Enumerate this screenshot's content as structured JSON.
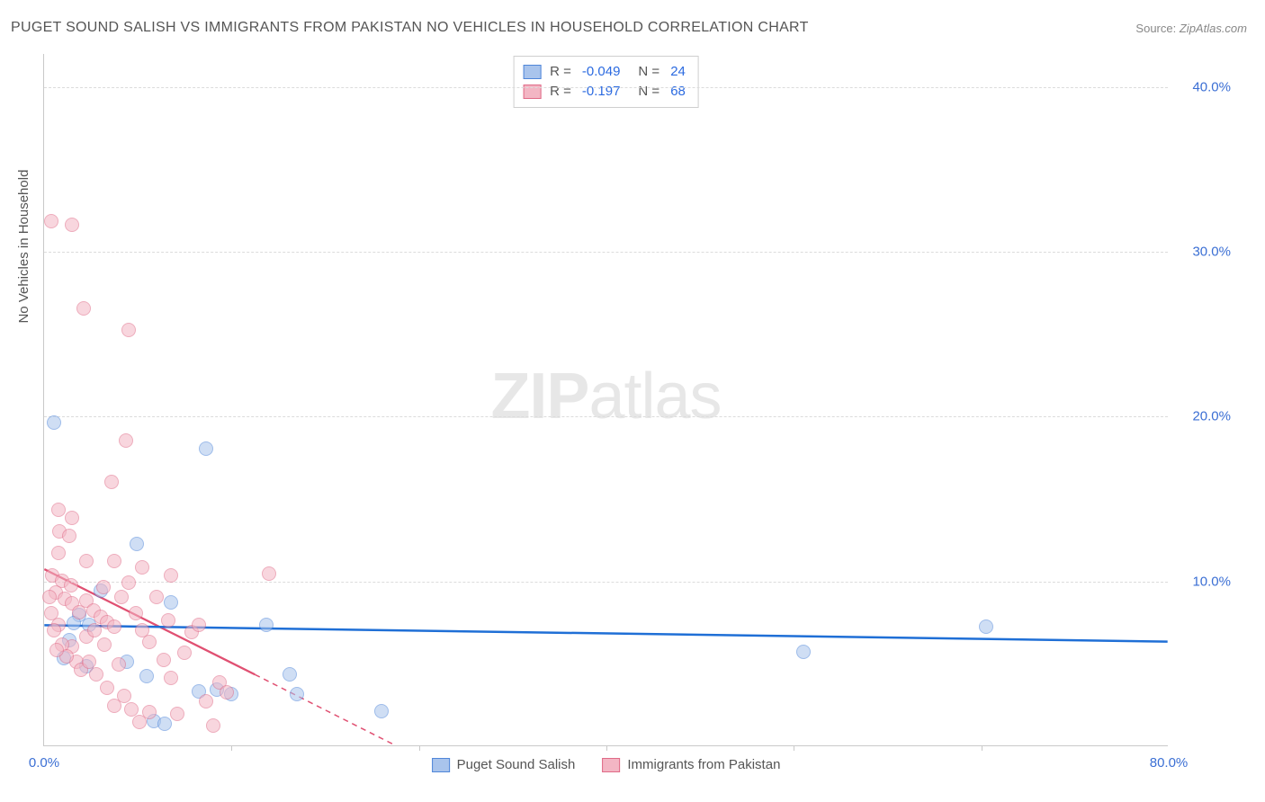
{
  "title": "PUGET SOUND SALISH VS IMMIGRANTS FROM PAKISTAN NO VEHICLES IN HOUSEHOLD CORRELATION CHART",
  "source_label": "Source:",
  "source_value": "ZipAtlas.com",
  "ylabel": "No Vehicles in Household",
  "watermark": {
    "bold": "ZIP",
    "light": "atlas"
  },
  "chart": {
    "type": "scatter",
    "xlim": [
      0,
      80
    ],
    "ylim": [
      0,
      42
    ],
    "x_ticks": [
      0,
      80
    ],
    "x_tick_labels": [
      "0.0%",
      "80.0%"
    ],
    "x_minor_ticks": [
      13.3,
      26.7,
      40,
      53.3,
      66.7
    ],
    "y_ticks": [
      10,
      20,
      30,
      40
    ],
    "y_tick_labels": [
      "10.0%",
      "20.0%",
      "30.0%",
      "40.0%"
    ],
    "grid_color": "#dcdcdc",
    "axis_color": "#c9c9c9",
    "background_color": "#ffffff",
    "marker_radius": 8,
    "marker_stroke_width": 1.2,
    "series": [
      {
        "name": "Puget Sound Salish",
        "fill": "#a9c4ec",
        "stroke": "#4f86d9",
        "opacity": 0.55,
        "R": "-0.049",
        "N": "24",
        "trend": {
          "x1": 0,
          "y1": 7.3,
          "x2": 80,
          "y2": 6.3,
          "color": "#1f6fd6",
          "width": 2.5,
          "dash": "none"
        },
        "points": [
          [
            0.7,
            19.6
          ],
          [
            11.5,
            18.0
          ],
          [
            6.6,
            12.2
          ],
          [
            2.5,
            7.9
          ],
          [
            2.1,
            7.4
          ],
          [
            3.2,
            7.3
          ],
          [
            15.8,
            7.3
          ],
          [
            1.8,
            6.4
          ],
          [
            1.4,
            5.3
          ],
          [
            5.9,
            5.1
          ],
          [
            7.3,
            4.2
          ],
          [
            11.0,
            3.3
          ],
          [
            12.3,
            3.4
          ],
          [
            13.3,
            3.1
          ],
          [
            7.8,
            1.5
          ],
          [
            8.6,
            1.3
          ],
          [
            18.0,
            3.1
          ],
          [
            17.5,
            4.3
          ],
          [
            24.0,
            2.1
          ],
          [
            54.0,
            5.7
          ],
          [
            67.0,
            7.2
          ],
          [
            9.0,
            8.7
          ],
          [
            4.0,
            9.4
          ],
          [
            3.0,
            4.8
          ]
        ]
      },
      {
        "name": "Immigrants from Pakistan",
        "fill": "#f3b6c4",
        "stroke": "#e06a87",
        "opacity": 0.55,
        "R": "-0.197",
        "N": "68",
        "trend": {
          "x1": 0,
          "y1": 10.7,
          "x2": 25,
          "y2": 0,
          "color": "#e05072",
          "width": 2.3,
          "dash": "none",
          "dash_ext": {
            "x1": 15,
            "y1": 4.3,
            "x2": 25,
            "y2": 0,
            "dash": "6,5"
          }
        },
        "points": [
          [
            0.5,
            31.8
          ],
          [
            2.0,
            31.6
          ],
          [
            2.8,
            26.5
          ],
          [
            6.0,
            25.2
          ],
          [
            5.8,
            18.5
          ],
          [
            4.8,
            16.0
          ],
          [
            1.0,
            14.3
          ],
          [
            2.0,
            13.8
          ],
          [
            1.1,
            13.0
          ],
          [
            1.8,
            12.7
          ],
          [
            1.0,
            11.7
          ],
          [
            3.0,
            11.2
          ],
          [
            5.0,
            11.2
          ],
          [
            7.0,
            10.8
          ],
          [
            9.0,
            10.3
          ],
          [
            16.0,
            10.4
          ],
          [
            0.6,
            10.3
          ],
          [
            1.3,
            10.0
          ],
          [
            0.8,
            9.3
          ],
          [
            1.5,
            8.9
          ],
          [
            2.0,
            8.6
          ],
          [
            2.5,
            8.1
          ],
          [
            3.0,
            8.8
          ],
          [
            3.5,
            8.2
          ],
          [
            4.0,
            7.8
          ],
          [
            4.5,
            7.5
          ],
          [
            5.0,
            7.2
          ],
          [
            5.5,
            9.0
          ],
          [
            6.0,
            9.9
          ],
          [
            6.5,
            8.0
          ],
          [
            7.0,
            7.0
          ],
          [
            7.5,
            6.3
          ],
          [
            8.0,
            9.0
          ],
          [
            8.5,
            5.2
          ],
          [
            9.0,
            4.1
          ],
          [
            9.5,
            1.9
          ],
          [
            10.0,
            5.6
          ],
          [
            10.5,
            6.9
          ],
          [
            11.0,
            7.3
          ],
          [
            2.0,
            6.0
          ],
          [
            2.3,
            5.1
          ],
          [
            2.6,
            4.6
          ],
          [
            3.2,
            5.1
          ],
          [
            3.7,
            4.3
          ],
          [
            1.0,
            7.3
          ],
          [
            1.3,
            6.1
          ],
          [
            1.6,
            5.4
          ],
          [
            0.5,
            8.0
          ],
          [
            0.7,
            7.0
          ],
          [
            0.9,
            5.8
          ],
          [
            4.5,
            3.5
          ],
          [
            5.0,
            2.4
          ],
          [
            5.7,
            3.0
          ],
          [
            6.2,
            2.2
          ],
          [
            6.8,
            1.4
          ],
          [
            7.5,
            2.0
          ],
          [
            11.5,
            2.7
          ],
          [
            12.0,
            1.2
          ],
          [
            12.5,
            3.8
          ],
          [
            4.2,
            9.6
          ],
          [
            3.0,
            6.6
          ],
          [
            3.6,
            7.0
          ],
          [
            4.3,
            6.1
          ],
          [
            1.9,
            9.7
          ],
          [
            0.4,
            9.0
          ],
          [
            5.3,
            4.9
          ],
          [
            8.8,
            7.6
          ],
          [
            13.0,
            3.2
          ]
        ]
      }
    ]
  },
  "legend_top_labels": {
    "R": "R =",
    "N": "N ="
  },
  "legend_bottom": [
    "Puget Sound Salish",
    "Immigrants from Pakistan"
  ]
}
